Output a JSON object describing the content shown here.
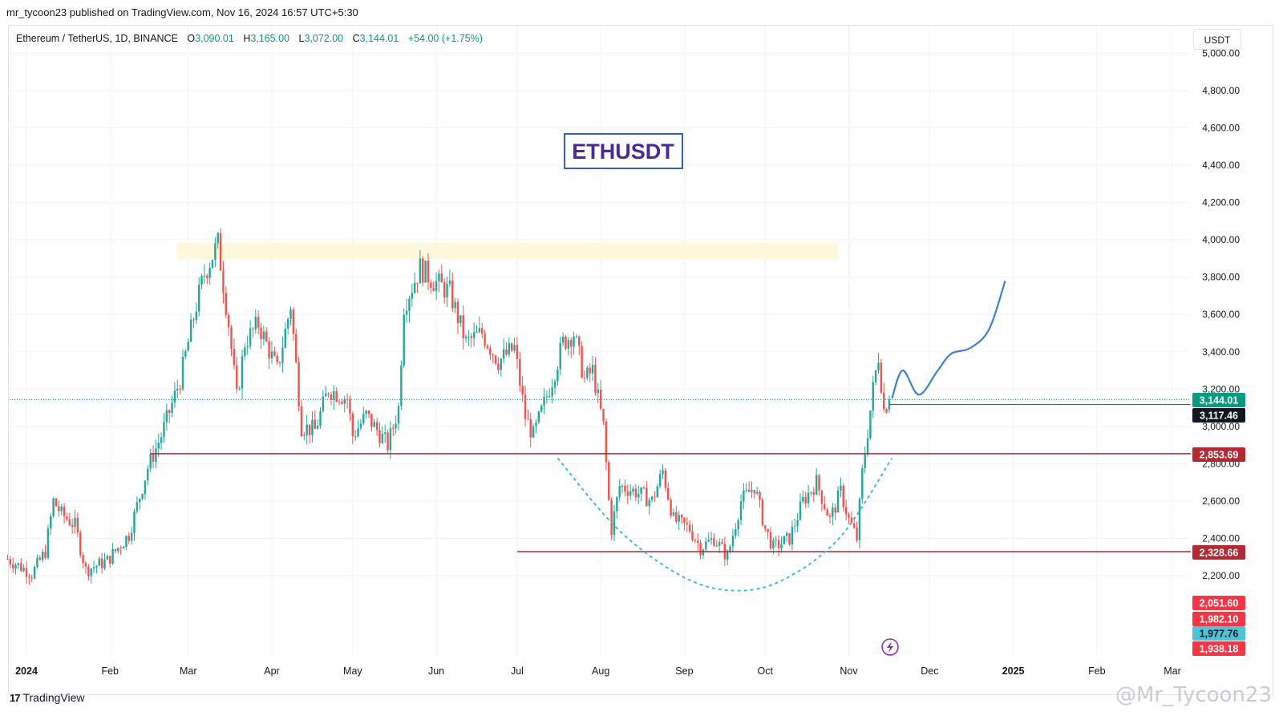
{
  "header": {
    "published_line": "mr_tycoon23 published on TradingView.com, Nov 16, 2024 16:57 UTC+5:30"
  },
  "legend": {
    "symbol": "Ethereum / TetherUS, 1D, BINANCE",
    "open_label": "O",
    "open": "3,090.01",
    "high_label": "H",
    "high": "3,165.00",
    "low_label": "L",
    "low": "3,072.00",
    "close_label": "C",
    "close": "3,144.01",
    "change": "+54.00 (+1.75%)"
  },
  "unit_button": "USDT",
  "footer": {
    "brand": "TradingView",
    "watermark": "@Mr_Tycoon23"
  },
  "colors": {
    "up": "#26a69a",
    "down": "#ef5350",
    "hline": "#b22833",
    "cup": "#3fbcd1",
    "projection": "#3f7fd6",
    "zone": "#fff8dc",
    "title_box": "#3d5fb3",
    "title_text": "#4a2a9a"
  },
  "chart_data": {
    "type": "candlestick",
    "title": "ETHUSDT",
    "ylim": [
      1840,
      5080
    ],
    "y_ticks": [
      2200,
      2400,
      2600,
      2800,
      3000,
      3200,
      3400,
      3600,
      3800,
      4000,
      4200,
      4400,
      4600,
      4800,
      5000
    ],
    "y_tick_labels": [
      "2,200.00",
      "2,400.00",
      "2,600.00",
      "2,800.00",
      "3,000.00",
      "3,200.00",
      "3,400.00",
      "3,600.00",
      "3,800.00",
      "4,000.00",
      "4,200.00",
      "4,400.00",
      "4,600.00",
      "4,800.00",
      "5,000.00"
    ],
    "x_ticks": [
      {
        "date": "2024-01-01",
        "label": "2024"
      },
      {
        "date": "2024-02-01",
        "label": "Feb"
      },
      {
        "date": "2024-03-01",
        "label": "Mar"
      },
      {
        "date": "2024-04-01",
        "label": "Apr"
      },
      {
        "date": "2024-05-01",
        "label": "May"
      },
      {
        "date": "2024-06-01",
        "label": "Jun"
      },
      {
        "date": "2024-07-01",
        "label": "Jul"
      },
      {
        "date": "2024-08-01",
        "label": "Aug"
      },
      {
        "date": "2024-09-01",
        "label": "Sep"
      },
      {
        "date": "2024-10-01",
        "label": "Oct"
      },
      {
        "date": "2024-11-01",
        "label": "Nov"
      },
      {
        "date": "2024-12-01",
        "label": "Dec"
      },
      {
        "date": "2025-01-01",
        "label": "2025"
      },
      {
        "date": "2025-02-01",
        "label": "Feb"
      },
      {
        "date": "2025-03-01",
        "label": "Mar"
      }
    ],
    "close_anchors": [
      [
        "2023-12-25",
        2290
      ],
      [
        "2024-01-03",
        2210
      ],
      [
        "2024-01-08",
        2330
      ],
      [
        "2024-01-11",
        2600
      ],
      [
        "2024-01-14",
        2530
      ],
      [
        "2024-01-19",
        2470
      ],
      [
        "2024-01-23",
        2230
      ],
      [
        "2024-01-31",
        2280
      ],
      [
        "2024-02-08",
        2420
      ],
      [
        "2024-02-15",
        2780
      ],
      [
        "2024-02-20",
        2950
      ],
      [
        "2024-02-27",
        3250
      ],
      [
        "2024-03-04",
        3650
      ],
      [
        "2024-03-07",
        3820
      ],
      [
        "2024-03-12",
        3980
      ],
      [
        "2024-03-16",
        3550
      ],
      [
        "2024-03-19",
        3150
      ],
      [
        "2024-03-22",
        3450
      ],
      [
        "2024-03-27",
        3550
      ],
      [
        "2024-04-03",
        3300
      ],
      [
        "2024-04-08",
        3650
      ],
      [
        "2024-04-12",
        3000
      ],
      [
        "2024-04-17",
        2980
      ],
      [
        "2024-04-22",
        3200
      ],
      [
        "2024-04-29",
        3150
      ],
      [
        "2024-05-01",
        2950
      ],
      [
        "2024-05-06",
        3060
      ],
      [
        "2024-05-14",
        2900
      ],
      [
        "2024-05-18",
        3100
      ],
      [
        "2024-05-20",
        3650
      ],
      [
        "2024-05-26",
        3850
      ],
      [
        "2024-05-31",
        3780
      ],
      [
        "2024-06-06",
        3720
      ],
      [
        "2024-06-12",
        3450
      ],
      [
        "2024-06-18",
        3500
      ],
      [
        "2024-06-24",
        3350
      ],
      [
        "2024-06-30",
        3420
      ],
      [
        "2024-07-04",
        3050
      ],
      [
        "2024-07-07",
        2950
      ],
      [
        "2024-07-14",
        3250
      ],
      [
        "2024-07-18",
        3450
      ],
      [
        "2024-07-22",
        3500
      ],
      [
        "2024-07-26",
        3250
      ],
      [
        "2024-07-29",
        3300
      ],
      [
        "2024-08-02",
        3000
      ],
      [
        "2024-08-04",
        2600
      ],
      [
        "2024-08-05",
        2450
      ],
      [
        "2024-08-08",
        2680
      ],
      [
        "2024-08-14",
        2650
      ],
      [
        "2024-08-20",
        2600
      ],
      [
        "2024-08-24",
        2760
      ],
      [
        "2024-08-28",
        2500
      ],
      [
        "2024-09-03",
        2450
      ],
      [
        "2024-09-07",
        2350
      ],
      [
        "2024-09-12",
        2400
      ],
      [
        "2024-09-17",
        2300
      ],
      [
        "2024-09-22",
        2600
      ],
      [
        "2024-09-27",
        2680
      ],
      [
        "2024-10-01",
        2450
      ],
      [
        "2024-10-04",
        2350
      ],
      [
        "2024-10-10",
        2400
      ],
      [
        "2024-10-15",
        2600
      ],
      [
        "2024-10-20",
        2700
      ],
      [
        "2024-10-25",
        2500
      ],
      [
        "2024-10-29",
        2650
      ],
      [
        "2024-11-01",
        2500
      ],
      [
        "2024-11-04",
        2400
      ],
      [
        "2024-11-06",
        2750
      ],
      [
        "2024-11-10",
        3200
      ],
      [
        "2024-11-12",
        3380
      ],
      [
        "2024-11-14",
        3090
      ],
      [
        "2024-11-16",
        3144
      ]
    ],
    "current_price": 3144.01,
    "annotations": {
      "resistance_zone": {
        "x_from": "2024-02-26",
        "x_to": "2024-10-28",
        "y_from": 3895,
        "y_to": 3985
      },
      "support_upper": {
        "price": 2853.69,
        "x_from": "2024-02-16"
      },
      "support_lower": {
        "price": 2328.66,
        "x_from": "2024-07-01"
      },
      "horizontal_ray": {
        "price": 3117.46,
        "x_from": "2024-11-16"
      },
      "cup_curve": [
        [
          "2024-07-16",
          2830
        ],
        [
          "2024-08-08",
          2440
        ],
        [
          "2024-09-01",
          2190
        ],
        [
          "2024-09-20",
          2120
        ],
        [
          "2024-10-08",
          2180
        ],
        [
          "2024-10-29",
          2410
        ],
        [
          "2024-11-17",
          2830
        ]
      ],
      "projection_path": [
        [
          "2024-11-17",
          3150
        ],
        [
          "2024-11-21",
          3300
        ],
        [
          "2024-11-27",
          3170
        ],
        [
          "2024-12-04",
          3300
        ],
        [
          "2024-12-09",
          3390
        ],
        [
          "2024-12-16",
          3420
        ],
        [
          "2024-12-23",
          3520
        ],
        [
          "2024-12-29",
          3780
        ]
      ]
    },
    "price_labels": [
      {
        "value": "3,144.01",
        "bg": "#089981",
        "color": "#ffffff"
      },
      {
        "value": "3,117.46",
        "bg": "#131722",
        "color": "#ffffff"
      },
      {
        "value": "2,853.69",
        "bg": "#b22833",
        "color": "#ffffff"
      },
      {
        "value": "2,328.66",
        "bg": "#b22833",
        "color": "#ffffff"
      },
      {
        "value": "2,051.60",
        "bg": "#f23645",
        "color": "#ffffff"
      },
      {
        "value": "1,982.10",
        "bg": "#f23645",
        "color": "#ffffff"
      },
      {
        "value": "1,977.76",
        "bg": "#4ec4d6",
        "color": "#131722"
      },
      {
        "value": "1,938.18",
        "bg": "#f23645",
        "color": "#ffffff"
      }
    ]
  }
}
